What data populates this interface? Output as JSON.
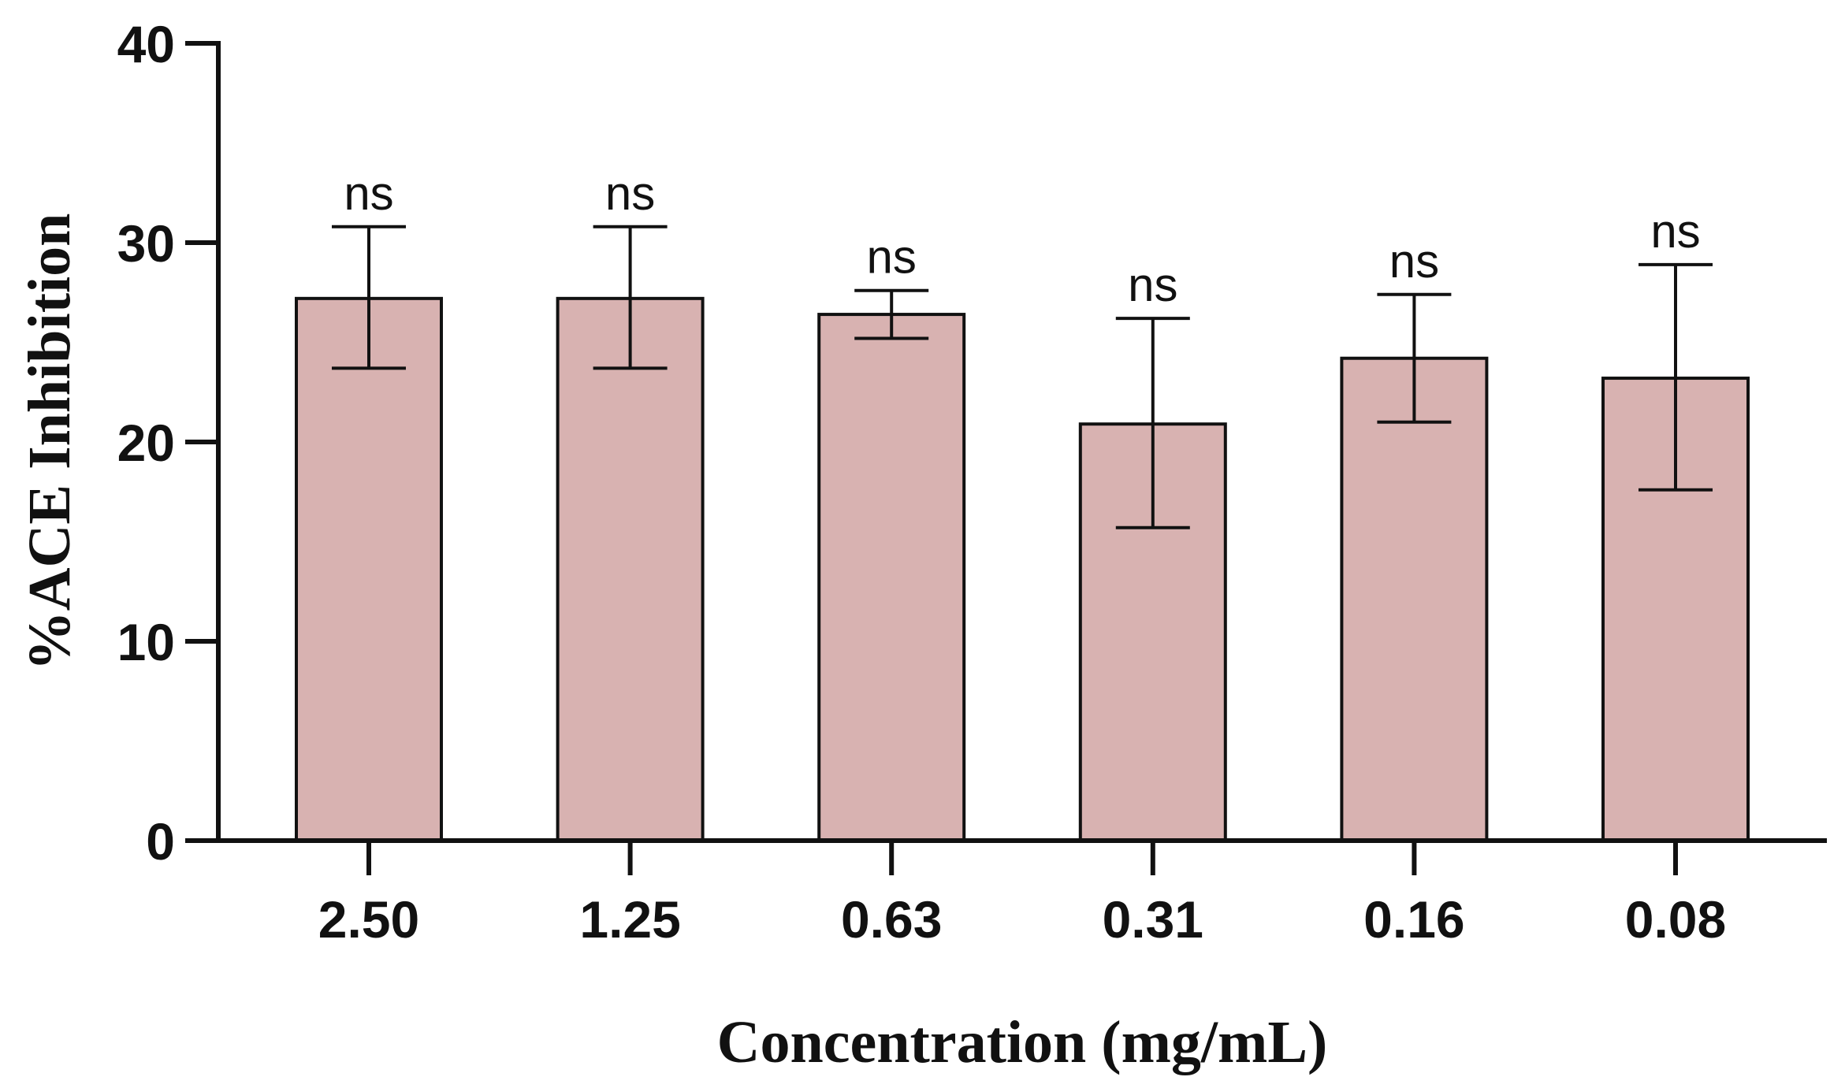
{
  "chart_data": {
    "type": "bar",
    "title": "",
    "xlabel": "Concentration (mg/mL)",
    "ylabel": "%ACE Inhibition",
    "categories": [
      "2.50",
      "1.25",
      "0.63",
      "0.31",
      "0.16",
      "0.08"
    ],
    "values": [
      27.2,
      27.2,
      26.4,
      20.9,
      24.2,
      23.2
    ],
    "error_low": [
      23.7,
      23.7,
      25.2,
      15.7,
      21.0,
      17.6
    ],
    "error_high": [
      30.8,
      30.8,
      27.6,
      26.2,
      27.4,
      28.9
    ],
    "annotations": [
      "ns",
      "ns",
      "ns",
      "ns",
      "ns",
      "ns"
    ],
    "ylim": [
      0,
      40
    ],
    "yticks": [
      0,
      10,
      20,
      30,
      40
    ],
    "ytick_labels": [
      "0",
      "10",
      "20",
      "30",
      "40"
    ],
    "grid": false,
    "colors": {
      "bar_fill": "#d8b2b1",
      "bar_stroke": "#111111",
      "axis": "#111111",
      "background": "#ffffff"
    }
  }
}
